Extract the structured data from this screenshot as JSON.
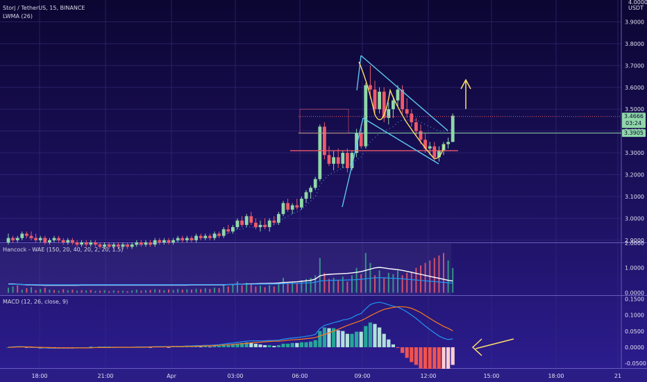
{
  "chart_data": {
    "type": "candlestick",
    "title": "Storj / TetherUS, 15, BINANCE",
    "indicator": "LWMA (26)",
    "price_axis": {
      "currency_label": "USDT",
      "top_label": "4.0000",
      "ticks": [
        "3.9000",
        "3.8000",
        "3.7000",
        "3.6000",
        "3.5000",
        "3.4000",
        "3.3000",
        "3.2000",
        "3.1000",
        "3.0000",
        "2.9000"
      ],
      "ylim": [
        2.89,
        4.0
      ]
    },
    "price_tags": [
      {
        "value": "3.4666",
        "sub": "03:24",
        "color": "#8fd8a8"
      },
      {
        "value": "3.3905",
        "color": "#8fd8a8"
      }
    ],
    "time_axis": {
      "labels": [
        "18:00",
        "21:00",
        "Apr",
        "03:00",
        "06:00",
        "09:00",
        "12:00",
        "15:00",
        "18:00",
        "21"
      ]
    },
    "candles": [
      [
        2.89,
        2.93,
        2.88,
        2.91
      ],
      [
        2.91,
        2.92,
        2.89,
        2.9
      ],
      [
        2.9,
        2.92,
        2.89,
        2.91
      ],
      [
        2.91,
        2.94,
        2.9,
        2.93
      ],
      [
        2.93,
        2.94,
        2.91,
        2.92
      ],
      [
        2.92,
        2.94,
        2.9,
        2.91
      ],
      [
        2.91,
        2.93,
        2.89,
        2.9
      ],
      [
        2.9,
        2.92,
        2.89,
        2.91
      ],
      [
        2.91,
        2.92,
        2.88,
        2.89
      ],
      [
        2.89,
        2.91,
        2.88,
        2.9
      ],
      [
        2.9,
        2.92,
        2.89,
        2.91
      ],
      [
        2.91,
        2.92,
        2.89,
        2.9
      ],
      [
        2.9,
        2.91,
        2.88,
        2.89
      ],
      [
        2.89,
        2.91,
        2.88,
        2.9
      ],
      [
        2.9,
        2.91,
        2.88,
        2.89
      ],
      [
        2.89,
        2.9,
        2.87,
        2.88
      ],
      [
        2.88,
        2.9,
        2.87,
        2.89
      ],
      [
        2.89,
        2.9,
        2.87,
        2.88
      ],
      [
        2.88,
        2.9,
        2.87,
        2.89
      ],
      [
        2.89,
        2.9,
        2.87,
        2.88
      ],
      [
        2.88,
        2.89,
        2.86,
        2.87
      ],
      [
        2.87,
        2.89,
        2.86,
        2.88
      ],
      [
        2.88,
        2.89,
        2.86,
        2.87
      ],
      [
        2.87,
        2.89,
        2.86,
        2.88
      ],
      [
        2.88,
        2.89,
        2.86,
        2.87
      ],
      [
        2.87,
        2.89,
        2.86,
        2.88
      ],
      [
        2.88,
        2.89,
        2.86,
        2.87
      ],
      [
        2.87,
        2.89,
        2.86,
        2.88
      ],
      [
        2.88,
        2.9,
        2.87,
        2.89
      ],
      [
        2.89,
        2.9,
        2.87,
        2.88
      ],
      [
        2.88,
        2.9,
        2.87,
        2.89
      ],
      [
        2.89,
        2.9,
        2.87,
        2.88
      ],
      [
        2.88,
        2.91,
        2.87,
        2.9
      ],
      [
        2.9,
        2.91,
        2.88,
        2.89
      ],
      [
        2.89,
        2.91,
        2.88,
        2.9
      ],
      [
        2.9,
        2.91,
        2.88,
        2.89
      ],
      [
        2.89,
        2.91,
        2.88,
        2.9
      ],
      [
        2.9,
        2.92,
        2.89,
        2.91
      ],
      [
        2.91,
        2.92,
        2.89,
        2.9
      ],
      [
        2.9,
        2.92,
        2.89,
        2.91
      ],
      [
        2.91,
        2.92,
        2.89,
        2.9
      ],
      [
        2.9,
        2.93,
        2.89,
        2.92
      ],
      [
        2.92,
        2.93,
        2.9,
        2.91
      ],
      [
        2.91,
        2.93,
        2.9,
        2.92
      ],
      [
        2.92,
        2.93,
        2.9,
        2.91
      ],
      [
        2.91,
        2.94,
        2.9,
        2.93
      ],
      [
        2.93,
        2.94,
        2.91,
        2.92
      ],
      [
        2.92,
        2.96,
        2.91,
        2.95
      ],
      [
        2.95,
        2.97,
        2.93,
        2.94
      ],
      [
        2.94,
        2.97,
        2.93,
        2.96
      ],
      [
        2.96,
        3.0,
        2.95,
        2.99
      ],
      [
        2.99,
        3.01,
        2.96,
        2.97
      ],
      [
        2.97,
        3.02,
        2.96,
        3.01
      ],
      [
        3.01,
        3.03,
        2.97,
        2.98
      ],
      [
        2.98,
        3.0,
        2.95,
        2.96
      ],
      [
        2.96,
        2.99,
        2.94,
        2.97
      ],
      [
        2.97,
        3.0,
        2.95,
        2.96
      ],
      [
        2.96,
        3.0,
        2.94,
        2.99
      ],
      [
        2.99,
        3.01,
        2.97,
        2.98
      ],
      [
        2.98,
        3.03,
        2.97,
        3.02
      ],
      [
        3.02,
        3.08,
        3.01,
        3.07
      ],
      [
        3.07,
        3.09,
        3.03,
        3.04
      ],
      [
        3.04,
        3.07,
        3.02,
        3.06
      ],
      [
        3.06,
        3.09,
        3.04,
        3.05
      ],
      [
        3.05,
        3.1,
        3.04,
        3.09
      ],
      [
        3.09,
        3.13,
        3.07,
        3.12
      ],
      [
        3.12,
        3.15,
        3.09,
        3.14
      ],
      [
        3.14,
        3.19,
        3.13,
        3.18
      ],
      [
        3.18,
        3.43,
        3.17,
        3.42
      ],
      [
        3.42,
        3.44,
        3.27,
        3.29
      ],
      [
        3.29,
        3.33,
        3.24,
        3.25
      ],
      [
        3.25,
        3.31,
        3.22,
        3.28
      ],
      [
        3.28,
        3.32,
        3.23,
        3.25
      ],
      [
        3.25,
        3.31,
        3.23,
        3.3
      ],
      [
        3.3,
        3.32,
        3.21,
        3.23
      ],
      [
        3.23,
        3.31,
        3.22,
        3.3
      ],
      [
        3.3,
        3.41,
        3.28,
        3.39
      ],
      [
        3.39,
        3.43,
        3.32,
        3.33
      ],
      [
        3.33,
        3.62,
        3.32,
        3.61
      ],
      [
        3.61,
        3.7,
        3.55,
        3.59
      ],
      [
        3.59,
        3.63,
        3.48,
        3.5
      ],
      [
        3.5,
        3.6,
        3.48,
        3.58
      ],
      [
        3.58,
        3.6,
        3.44,
        3.46
      ],
      [
        3.46,
        3.53,
        3.43,
        3.5
      ],
      [
        3.5,
        3.56,
        3.46,
        3.54
      ],
      [
        3.54,
        3.61,
        3.51,
        3.59
      ],
      [
        3.59,
        3.61,
        3.48,
        3.5
      ],
      [
        3.5,
        3.55,
        3.46,
        3.48
      ],
      [
        3.48,
        3.5,
        3.42,
        3.44
      ],
      [
        3.44,
        3.46,
        3.38,
        3.4
      ],
      [
        3.4,
        3.43,
        3.34,
        3.36
      ],
      [
        3.36,
        3.39,
        3.3,
        3.32
      ],
      [
        3.32,
        3.35,
        3.29,
        3.33
      ],
      [
        3.33,
        3.35,
        3.26,
        3.28
      ],
      [
        3.28,
        3.33,
        3.26,
        3.31
      ],
      [
        3.31,
        3.35,
        3.29,
        3.34
      ],
      [
        3.34,
        3.37,
        3.32,
        3.35
      ],
      [
        3.35,
        3.48,
        3.35,
        3.47
      ]
    ],
    "lwma": [
      2.91,
      2.91,
      2.91,
      2.91,
      2.91,
      2.91,
      2.91,
      2.91,
      2.91,
      2.9,
      2.9,
      2.9,
      2.9,
      2.9,
      2.9,
      2.89,
      2.89,
      2.89,
      2.89,
      2.89,
      2.88,
      2.88,
      2.88,
      2.88,
      2.88,
      2.88,
      2.88,
      2.88,
      2.88,
      2.88,
      2.88,
      2.88,
      2.89,
      2.89,
      2.89,
      2.89,
      2.89,
      2.9,
      2.9,
      2.9,
      2.9,
      2.91,
      2.91,
      2.91,
      2.91,
      2.92,
      2.92,
      2.93,
      2.93,
      2.94,
      2.95,
      2.95,
      2.96,
      2.96,
      2.96,
      2.96,
      2.97,
      2.97,
      2.97,
      2.98,
      3.0,
      3.01,
      3.02,
      3.03,
      3.04,
      3.06,
      3.08,
      3.1,
      3.15,
      3.18,
      3.2,
      3.21,
      3.22,
      3.23,
      3.24,
      3.25,
      3.27,
      3.28,
      3.32,
      3.35,
      3.37,
      3.39,
      3.4,
      3.41,
      3.42,
      3.44,
      3.45,
      3.45,
      3.45,
      3.45,
      3.44,
      3.43,
      3.42,
      3.41,
      3.4,
      3.4,
      3.4,
      3.41
    ],
    "wae": {
      "label": "Hancock - WAE (150, 20, 40, 20, 2, 20, 1.5)",
      "ticks": [
        "2.0000",
        "1.0000",
        "0.0000"
      ],
      "ylim": [
        -0.1,
        2.0
      ],
      "explosion": [
        0.35,
        0.35,
        0.34,
        0.33,
        0.32,
        0.32,
        0.31,
        0.31,
        0.3,
        0.3,
        0.3,
        0.3,
        0.3,
        0.3,
        0.3,
        0.3,
        0.31,
        0.31,
        0.31,
        0.31,
        0.31,
        0.31,
        0.31,
        0.31,
        0.31,
        0.31,
        0.31,
        0.31,
        0.31,
        0.31,
        0.31,
        0.31,
        0.31,
        0.31,
        0.31,
        0.31,
        0.31,
        0.31,
        0.31,
        0.31,
        0.32,
        0.32,
        0.32,
        0.32,
        0.32,
        0.32,
        0.32,
        0.32,
        0.33,
        0.33,
        0.34,
        0.34,
        0.35,
        0.36,
        0.36,
        0.37,
        0.37,
        0.38,
        0.38,
        0.39,
        0.41,
        0.42,
        0.43,
        0.44,
        0.46,
        0.48,
        0.5,
        0.55,
        0.68,
        0.72,
        0.74,
        0.75,
        0.76,
        0.77,
        0.78,
        0.8,
        0.82,
        0.85,
        0.9,
        0.95,
        1.0,
        1.02,
        1.0,
        0.97,
        0.95,
        0.93,
        0.9,
        0.86,
        0.82,
        0.78,
        0.74,
        0.7,
        0.66,
        0.62,
        0.58,
        0.54,
        0.5,
        0.47
      ],
      "trend": [
        0.2,
        0.25,
        0.3,
        0.12,
        0.18,
        0.22,
        0.1,
        0.15,
        0.2,
        0.12,
        0.1,
        0.08,
        0.14,
        0.1,
        0.12,
        0.08,
        0.1,
        0.09,
        0.11,
        0.07,
        0.08,
        0.1,
        0.06,
        0.09,
        0.07,
        0.08,
        0.06,
        0.09,
        0.12,
        0.08,
        0.1,
        0.11,
        0.14,
        0.12,
        0.1,
        0.13,
        0.11,
        0.15,
        0.12,
        0.14,
        0.12,
        0.16,
        0.14,
        0.18,
        0.15,
        0.2,
        0.18,
        0.3,
        0.25,
        0.35,
        0.45,
        0.3,
        0.4,
        0.35,
        0.25,
        0.28,
        0.22,
        0.3,
        0.25,
        0.35,
        0.6,
        0.4,
        0.45,
        0.38,
        0.5,
        0.55,
        0.6,
        0.7,
        1.4,
        0.8,
        0.55,
        0.6,
        0.5,
        0.65,
        0.45,
        0.7,
        1.0,
        0.75,
        1.6,
        1.2,
        0.7,
        0.9,
        0.6,
        0.8,
        0.75,
        0.9,
        0.7,
        0.8,
        0.85,
        1.0,
        1.1,
        1.2,
        1.3,
        1.4,
        1.5,
        1.6,
        1.3,
        1.0
      ],
      "trend_dir": [
        1,
        1,
        -1,
        1,
        -1,
        1,
        -1,
        1,
        -1,
        1,
        -1,
        1,
        -1,
        1,
        -1,
        1,
        -1,
        1,
        -1,
        1,
        -1,
        1,
        -1,
        1,
        -1,
        1,
        -1,
        1,
        1,
        -1,
        1,
        -1,
        1,
        -1,
        1,
        -1,
        1,
        1,
        -1,
        1,
        -1,
        1,
        -1,
        1,
        -1,
        1,
        -1,
        1,
        -1,
        1,
        1,
        -1,
        1,
        -1,
        -1,
        1,
        -1,
        1,
        -1,
        1,
        1,
        -1,
        1,
        -1,
        1,
        1,
        1,
        1,
        1,
        -1,
        -1,
        1,
        -1,
        1,
        -1,
        1,
        1,
        -1,
        1,
        1,
        -1,
        1,
        -1,
        1,
        1,
        1,
        -1,
        -1,
        -1,
        -1,
        -1,
        -1,
        -1,
        -1,
        -1,
        -1,
        1,
        1
      ]
    },
    "macd": {
      "label": "MACD (12, 26, close, 9)",
      "ticks": [
        "0.1500",
        "0.1000",
        "0.0500",
        "0.0000",
        "-0.0500"
      ],
      "ylim": [
        -0.065,
        0.16
      ],
      "macd_line": [
        0.0,
        0.001,
        0.002,
        0.002,
        0.001,
        0.0,
        -0.001,
        -0.002,
        -0.002,
        -0.003,
        -0.003,
        -0.003,
        -0.003,
        -0.003,
        -0.003,
        -0.002,
        -0.002,
        -0.002,
        -0.001,
        -0.001,
        0.0,
        0.0,
        0.0,
        0.0,
        0.0,
        0.0,
        0.0,
        0.0,
        0.001,
        0.001,
        0.001,
        0.001,
        0.002,
        0.002,
        0.002,
        0.002,
        0.003,
        0.003,
        0.003,
        0.004,
        0.004,
        0.005,
        0.005,
        0.006,
        0.006,
        0.007,
        0.008,
        0.01,
        0.012,
        0.013,
        0.015,
        0.017,
        0.019,
        0.02,
        0.02,
        0.02,
        0.02,
        0.021,
        0.021,
        0.022,
        0.025,
        0.027,
        0.029,
        0.03,
        0.032,
        0.034,
        0.036,
        0.04,
        0.058,
        0.068,
        0.072,
        0.077,
        0.08,
        0.085,
        0.087,
        0.092,
        0.1,
        0.105,
        0.12,
        0.133,
        0.138,
        0.14,
        0.137,
        0.132,
        0.128,
        0.125,
        0.118,
        0.11,
        0.1,
        0.09,
        0.078,
        0.066,
        0.055,
        0.045,
        0.035,
        0.028,
        0.024,
        0.026
      ],
      "signal_line": [
        0.0,
        0.0,
        0.001,
        0.001,
        0.001,
        0.001,
        0.0,
        0.0,
        -0.001,
        -0.001,
        -0.002,
        -0.002,
        -0.002,
        -0.002,
        -0.002,
        -0.002,
        -0.002,
        -0.002,
        -0.002,
        -0.001,
        -0.001,
        -0.001,
        -0.001,
        0.0,
        0.0,
        0.0,
        0.0,
        0.0,
        0.0,
        0.0,
        0.0,
        0.001,
        0.001,
        0.001,
        0.001,
        0.002,
        0.002,
        0.002,
        0.002,
        0.003,
        0.003,
        0.003,
        0.004,
        0.004,
        0.005,
        0.005,
        0.006,
        0.007,
        0.008,
        0.009,
        0.01,
        0.011,
        0.012,
        0.014,
        0.015,
        0.016,
        0.017,
        0.018,
        0.019,
        0.019,
        0.02,
        0.022,
        0.023,
        0.024,
        0.025,
        0.027,
        0.028,
        0.03,
        0.035,
        0.04,
        0.045,
        0.05,
        0.056,
        0.062,
        0.068,
        0.073,
        0.078,
        0.083,
        0.09,
        0.098,
        0.105,
        0.112,
        0.118,
        0.121,
        0.124,
        0.126,
        0.126,
        0.125,
        0.121,
        0.115,
        0.108,
        0.099,
        0.09,
        0.081,
        0.073,
        0.065,
        0.059,
        0.051
      ]
    },
    "annotations": {
      "pattern": "falling wedge",
      "arrows": [
        "up arrow above last candle",
        "left-pointing arrow at MACD histogram"
      ]
    }
  },
  "colors": {
    "background_top": "#0d0736",
    "background_bottom": "#2b1a8a",
    "up": "#8fd8a8",
    "down": "#ef5a6a",
    "wedge": "#5ec8f0",
    "annotation": "#ffe26a",
    "macd": "#2196f3",
    "signal": "#ff7a1a",
    "explosion": "#ffffff"
  }
}
